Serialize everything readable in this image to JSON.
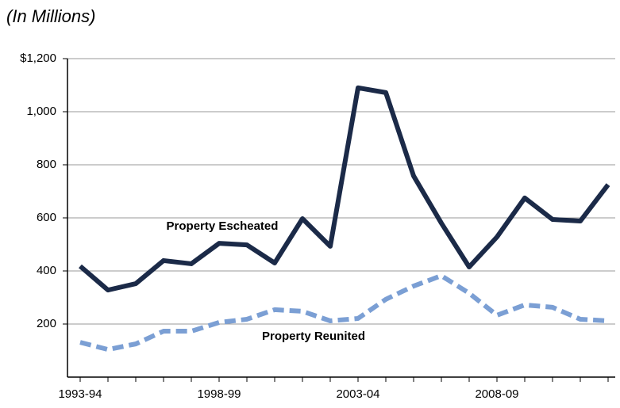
{
  "chart_data": {
    "type": "line",
    "title": "(In Millions)",
    "categories": [
      "1993-94",
      null,
      null,
      null,
      null,
      "1998-99",
      null,
      null,
      null,
      null,
      "2003-04",
      null,
      null,
      null,
      null,
      "2008-09",
      null,
      null,
      null,
      null
    ],
    "series": [
      {
        "name": "Property Escheated",
        "color": "#1b2a48",
        "dashed": false,
        "values": [
          418,
          328,
          352,
          439,
          427,
          504,
          498,
          430,
          597,
          493,
          1090,
          1072,
          758,
          580,
          415,
          528,
          675,
          594,
          588,
          725
        ]
      },
      {
        "name": "Property Reunited",
        "color": "#7b9fd4",
        "dashed": true,
        "values": [
          131,
          104,
          125,
          173,
          173,
          206,
          218,
          254,
          248,
          212,
          221,
          293,
          343,
          382,
          316,
          233,
          272,
          263,
          218,
          212
        ]
      }
    ],
    "ylim": [
      0,
      1200
    ],
    "yticks": [
      200,
      400,
      600,
      800,
      {
        "value": 1000,
        "label": "1,000"
      },
      {
        "value": 1200,
        "label": "$1,200"
      }
    ],
    "grid": true
  }
}
